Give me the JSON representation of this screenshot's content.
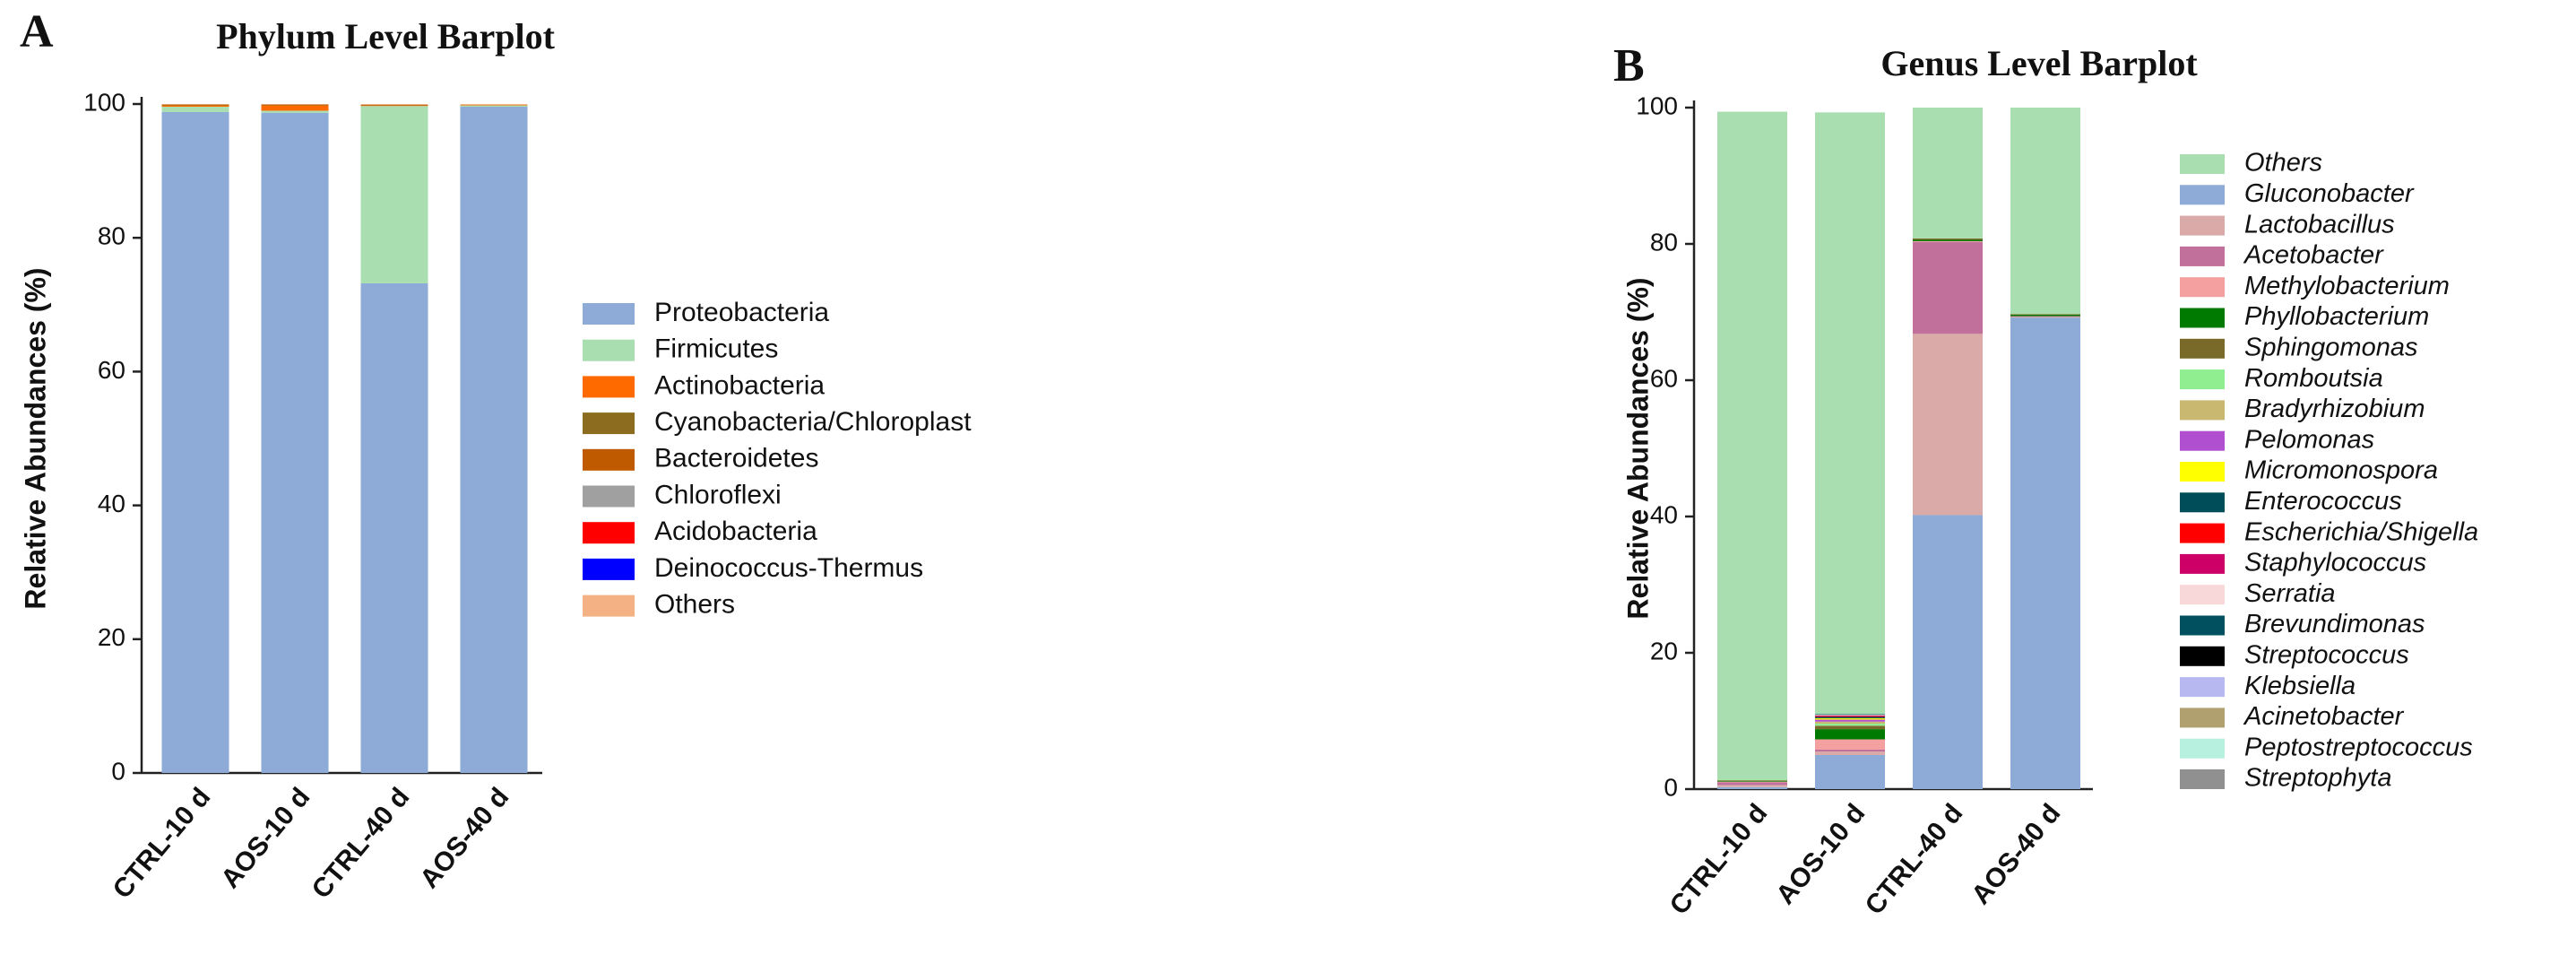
{
  "chart_data": [
    {
      "type": "stacked_bar",
      "panel_label": "A",
      "title": "Phylum Level Barplot",
      "ylabel": "Relative Abundances (%)",
      "categories": [
        "CTRL-10 d",
        "AOS-10 d",
        "CTRL-40 d",
        "AOS-40 d"
      ],
      "ylim": [
        0,
        100
      ],
      "yticks": [
        0,
        20,
        40,
        60,
        80,
        100
      ],
      "series": [
        {
          "name": "Proteobacteria",
          "color": "#8eaad6",
          "values": [
            98.8,
            98.7,
            73.2,
            99.6
          ]
        },
        {
          "name": "Firmicutes",
          "color": "#a9dfb0",
          "values": [
            0.8,
            0.3,
            26.5,
            0.2
          ]
        },
        {
          "name": "Actinobacteria",
          "color": "#ff6a00",
          "values": [
            0.2,
            0.8,
            0.1,
            0.1
          ]
        },
        {
          "name": "Cyanobacteria/Chloroplast",
          "color": "#8c6d1f",
          "values": [
            0.1,
            0.1,
            0.1,
            0
          ]
        },
        {
          "name": "Bacteroidetes",
          "color": "#c05a00",
          "values": [
            0.05,
            0.05,
            0,
            0
          ]
        },
        {
          "name": "Chloroflexi",
          "color": "#a0a0a0",
          "values": [
            0,
            0,
            0,
            0
          ]
        },
        {
          "name": "Acidobacteria",
          "color": "#ff0000",
          "values": [
            0,
            0,
            0,
            0
          ]
        },
        {
          "name": "Deinococcus-Thermus",
          "color": "#0000ff",
          "values": [
            0,
            0,
            0,
            0
          ]
        },
        {
          "name": "Others",
          "color": "#f4b183",
          "values": [
            0.05,
            0.05,
            0.1,
            0.1
          ]
        }
      ]
    },
    {
      "type": "stacked_bar",
      "panel_label": "B",
      "title": "Genus Level Barplot",
      "ylabel": "Relative Abundances (%)",
      "categories": [
        "CTRL-10 d",
        "AOS-10 d",
        "CTRL-40 d",
        "AOS-40 d"
      ],
      "ylim": [
        0,
        100
      ],
      "yticks": [
        0,
        20,
        40,
        60,
        80,
        100
      ],
      "stack_top_first": true,
      "legend_italic": true,
      "series": [
        {
          "name": "Others",
          "color": "#a9dfb0",
          "values": [
            98.0,
            88.3,
            19.2,
            30.3
          ]
        },
        {
          "name": "Gluconobacter",
          "color": "#8eaad6",
          "values": [
            0.3,
            5.0,
            40.2,
            69.2
          ]
        },
        {
          "name": "Lactobacillus",
          "color": "#d9aaa7",
          "values": [
            0.3,
            0.5,
            26.6,
            0.1
          ]
        },
        {
          "name": "Acetobacter",
          "color": "#c0709a",
          "values": [
            0.4,
            0.3,
            13.5,
            0.1
          ]
        },
        {
          "name": "Methylobacterium",
          "color": "#f4a0a0",
          "values": [
            0.1,
            1.5,
            0.1,
            0
          ]
        },
        {
          "name": "Phyllobacterium",
          "color": "#007a00",
          "values": [
            0.1,
            1.5,
            0.2,
            0.2
          ]
        },
        {
          "name": "Sphingomonas",
          "color": "#7a6a2a",
          "values": [
            0.1,
            0.5,
            0.2,
            0.1
          ]
        },
        {
          "name": "Romboutsia",
          "color": "#90ee90",
          "values": [
            0.1,
            0.3,
            0,
            0
          ]
        },
        {
          "name": "Bradyrhizobium",
          "color": "#c8b870",
          "values": [
            0,
            0.3,
            0,
            0
          ]
        },
        {
          "name": "Pelomonas",
          "color": "#b050d0",
          "values": [
            0,
            0.3,
            0,
            0
          ]
        },
        {
          "name": "Micromonospora",
          "color": "#ffff00",
          "values": [
            0,
            0.2,
            0,
            0
          ]
        },
        {
          "name": "Enterococcus",
          "color": "#004d5a",
          "values": [
            0,
            0.2,
            0,
            0
          ]
        },
        {
          "name": "Escherichia/Shigella",
          "color": "#ff0000",
          "values": [
            0,
            0.1,
            0,
            0
          ]
        },
        {
          "name": "Staphylococcus",
          "color": "#cc0066",
          "values": [
            0,
            0.1,
            0,
            0
          ]
        },
        {
          "name": "Serratia",
          "color": "#f8d8d8",
          "values": [
            0,
            0.1,
            0,
            0
          ]
        },
        {
          "name": "Brevundimonas",
          "color": "#005060",
          "values": [
            0,
            0.1,
            0,
            0
          ]
        },
        {
          "name": "Streptococcus",
          "color": "#000000",
          "values": [
            0,
            0,
            0,
            0
          ]
        },
        {
          "name": "Klebsiella",
          "color": "#b8b8f0",
          "values": [
            0,
            0,
            0,
            0
          ]
        },
        {
          "name": "Acinetobacter",
          "color": "#b0a070",
          "values": [
            0,
            0,
            0,
            0
          ]
        },
        {
          "name": "Peptostreptococcus",
          "color": "#b8f0e0",
          "values": [
            0,
            0,
            0,
            0
          ]
        },
        {
          "name": "Streptophyta",
          "color": "#909090",
          "values": [
            0,
            0,
            0,
            0
          ]
        }
      ]
    }
  ]
}
